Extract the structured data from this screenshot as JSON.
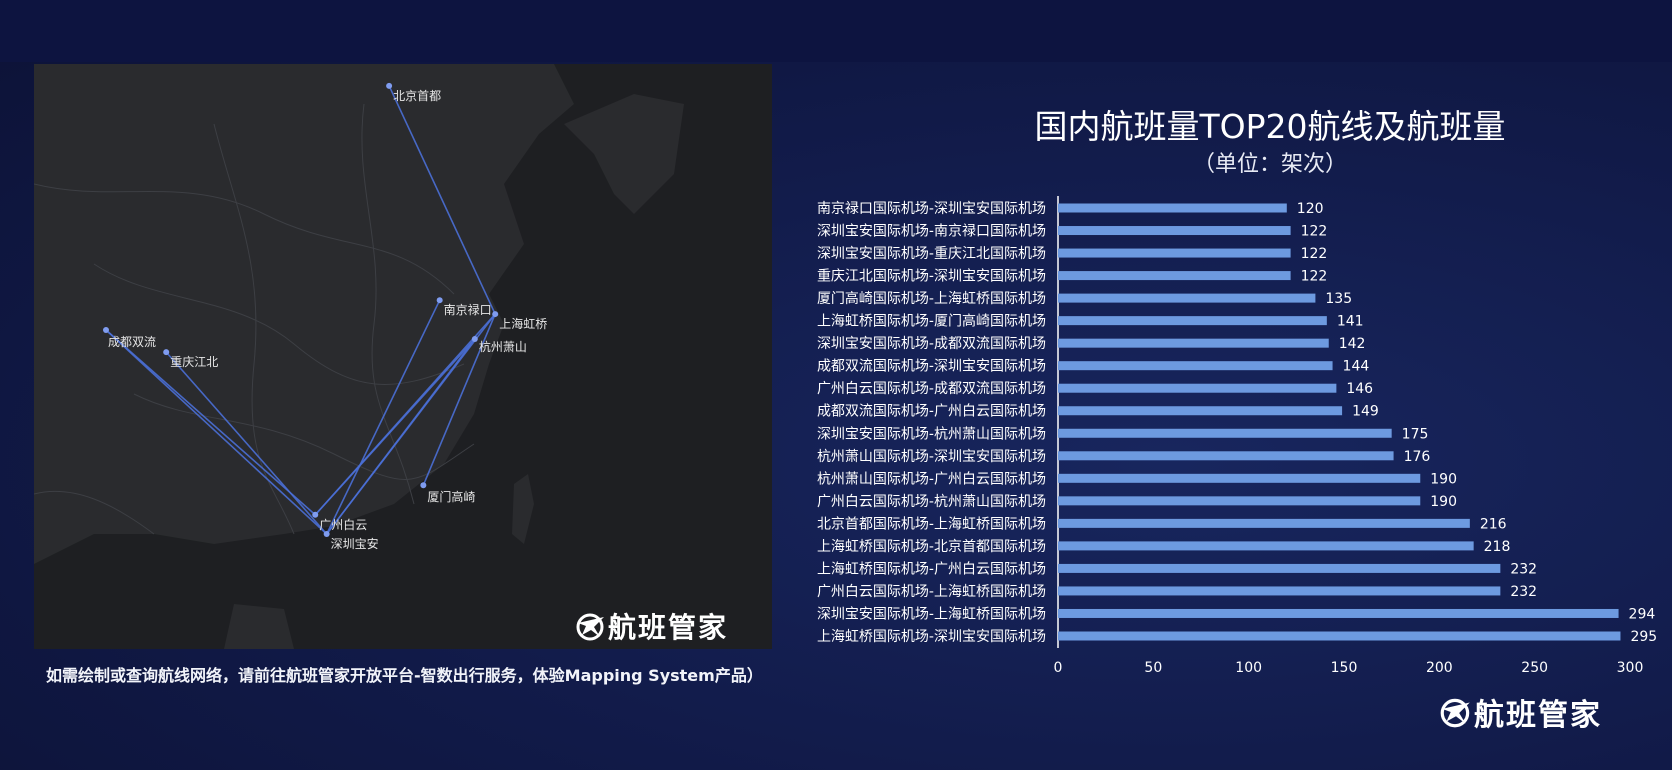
{
  "map": {
    "cities": [
      {
        "name": "北京首都",
        "lon": 116.6,
        "lat": 40.08
      },
      {
        "name": "南京禄口",
        "lon": 118.86,
        "lat": 31.74
      },
      {
        "name": "上海虹桥",
        "lon": 121.34,
        "lat": 31.2
      },
      {
        "name": "杭州萧山",
        "lon": 120.43,
        "lat": 30.23
      },
      {
        "name": "成都双流",
        "lon": 103.95,
        "lat": 30.58
      },
      {
        "name": "重庆江北",
        "lon": 106.64,
        "lat": 29.72
      },
      {
        "name": "厦门高崎",
        "lon": 118.13,
        "lat": 24.54
      },
      {
        "name": "广州白云",
        "lon": 113.3,
        "lat": 23.39
      },
      {
        "name": "深圳宝安",
        "lon": 113.81,
        "lat": 22.64
      }
    ],
    "routes": [
      [
        "北京首都",
        "上海虹桥"
      ],
      [
        "南京禄口",
        "深圳宝安"
      ],
      [
        "上海虹桥",
        "深圳宝安"
      ],
      [
        "上海虹桥",
        "广州白云"
      ],
      [
        "上海虹桥",
        "厦门高崎"
      ],
      [
        "杭州萧山",
        "深圳宝安"
      ],
      [
        "杭州萧山",
        "广州白云"
      ],
      [
        "成都双流",
        "深圳宝安"
      ],
      [
        "成都双流",
        "广州白云"
      ],
      [
        "重庆江北",
        "深圳宝安"
      ]
    ],
    "colors": {
      "route": "#4a6fd6",
      "node": "#7f9cf0",
      "land": "#2a2b2e",
      "sea": "#1e1f22",
      "border": "#3d3f44"
    }
  },
  "footnote": "如需绘制或查询航线网络，请前往航班管家开放平台-智数出行服务，体验Mapping System产品）",
  "brand": {
    "name": "航班管家",
    "icon": "plane-globe-icon"
  },
  "chart_data": {
    "type": "bar",
    "orientation": "horizontal",
    "title": "国内航班量TOP20航线及航班量",
    "subtitle": "（单位：架次）",
    "categories": [
      "南京禄口国际机场-深圳宝安国际机场",
      "深圳宝安国际机场-南京禄口国际机场",
      "深圳宝安国际机场-重庆江北国际机场",
      "重庆江北国际机场-深圳宝安国际机场",
      "厦门高崎国际机场-上海虹桥国际机场",
      "上海虹桥国际机场-厦门高崎国际机场",
      "深圳宝安国际机场-成都双流国际机场",
      "成都双流国际机场-深圳宝安国际机场",
      "广州白云国际机场-成都双流国际机场",
      "成都双流国际机场-广州白云国际机场",
      "深圳宝安国际机场-杭州萧山国际机场",
      "杭州萧山国际机场-深圳宝安国际机场",
      "杭州萧山国际机场-广州白云国际机场",
      "广州白云国际机场-杭州萧山国际机场",
      "北京首都国际机场-上海虹桥国际机场",
      "上海虹桥国际机场-北京首都国际机场",
      "上海虹桥国际机场-广州白云国际机场",
      "广州白云国际机场-上海虹桥国际机场",
      "深圳宝安国际机场-上海虹桥国际机场",
      "上海虹桥国际机场-深圳宝安国际机场"
    ],
    "values": [
      120,
      122,
      122,
      122,
      135,
      141,
      142,
      144,
      146,
      149,
      175,
      176,
      190,
      190,
      216,
      218,
      232,
      232,
      294,
      295
    ],
    "xlim": [
      0,
      300
    ],
    "xticks": [
      0,
      50,
      100,
      150,
      200,
      250,
      300
    ],
    "bar_color": "#6d9ae0",
    "data_labels": true,
    "grid": false
  }
}
